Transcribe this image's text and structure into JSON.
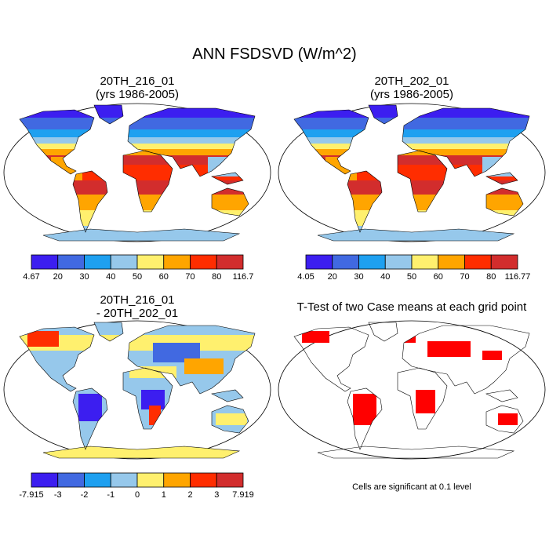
{
  "title": "ANN FSDSVD (W/m^2)",
  "panels": [
    {
      "title": "20TH_216_01",
      "subtitle": "(yrs 1986-2005)",
      "colorbar": {
        "labels": [
          "4.67",
          "20",
          "30",
          "40",
          "50",
          "60",
          "70",
          "80",
          "116.7"
        ],
        "colors": [
          "#3c1ef0",
          "#4169e1",
          "#1ea0f0",
          "#96c8eb",
          "#fff06e",
          "#ffa500",
          "#ff2d00",
          "#d22d2d"
        ]
      }
    },
    {
      "title": "20TH_202_01",
      "subtitle": "(yrs 1986-2005)",
      "colorbar": {
        "labels": [
          "4.05",
          "20",
          "30",
          "40",
          "50",
          "60",
          "70",
          "80",
          "116.77"
        ],
        "colors": [
          "#3c1ef0",
          "#4169e1",
          "#1ea0f0",
          "#96c8eb",
          "#fff06e",
          "#ffa500",
          "#ff2d00",
          "#d22d2d"
        ]
      }
    },
    {
      "title": "20TH_216_01",
      "subtitle": "- 20TH_202_01",
      "colorbar": {
        "labels": [
          "-7.915",
          "-3",
          "-2",
          "-1",
          "0",
          "1",
          "2",
          "3",
          "7.919"
        ],
        "colors": [
          "#3c1ef0",
          "#4169e1",
          "#1ea0f0",
          "#96c8eb",
          "#fff06e",
          "#ffa500",
          "#ff2d00",
          "#d22d2d"
        ]
      }
    }
  ],
  "ttest": {
    "title": "T-Test of two Case means at each grid point",
    "note": "Cells are significant at 0.1 level"
  }
}
